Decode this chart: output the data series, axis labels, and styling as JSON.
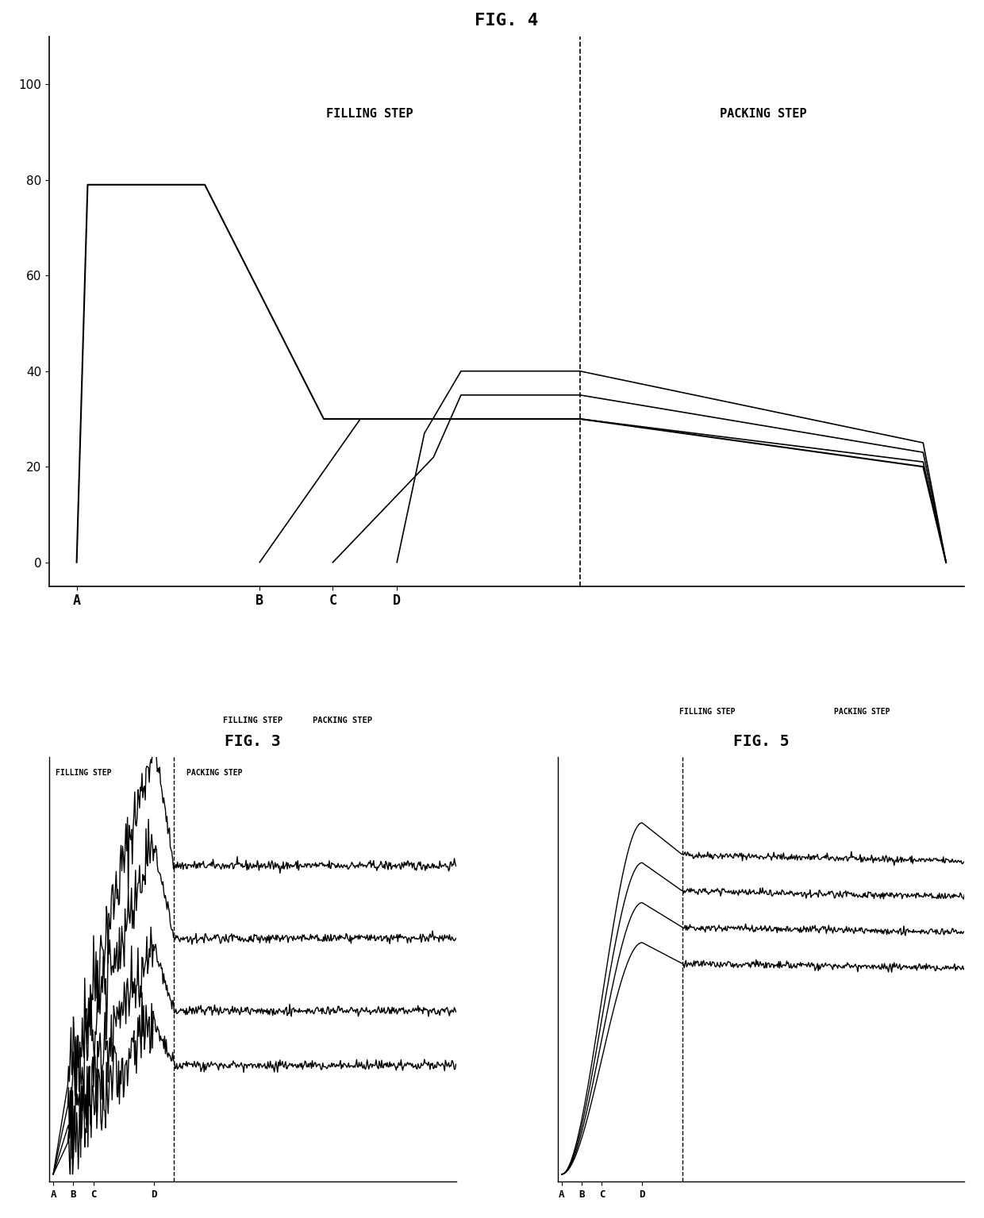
{
  "fig4_title": "FIG. 4",
  "fig3_title": "FIG. 3",
  "fig5_title": "FIG. 5",
  "background_color": "#ffffff",
  "line_color": "#000000",
  "fig4_yticks": [
    0,
    20,
    40,
    60,
    80,
    100
  ],
  "fig4_xlabels": [
    "A",
    "B",
    "C",
    "D"
  ],
  "filling_step_label": "FILLING STEP",
  "packing_step_label": "PACKING STEP"
}
